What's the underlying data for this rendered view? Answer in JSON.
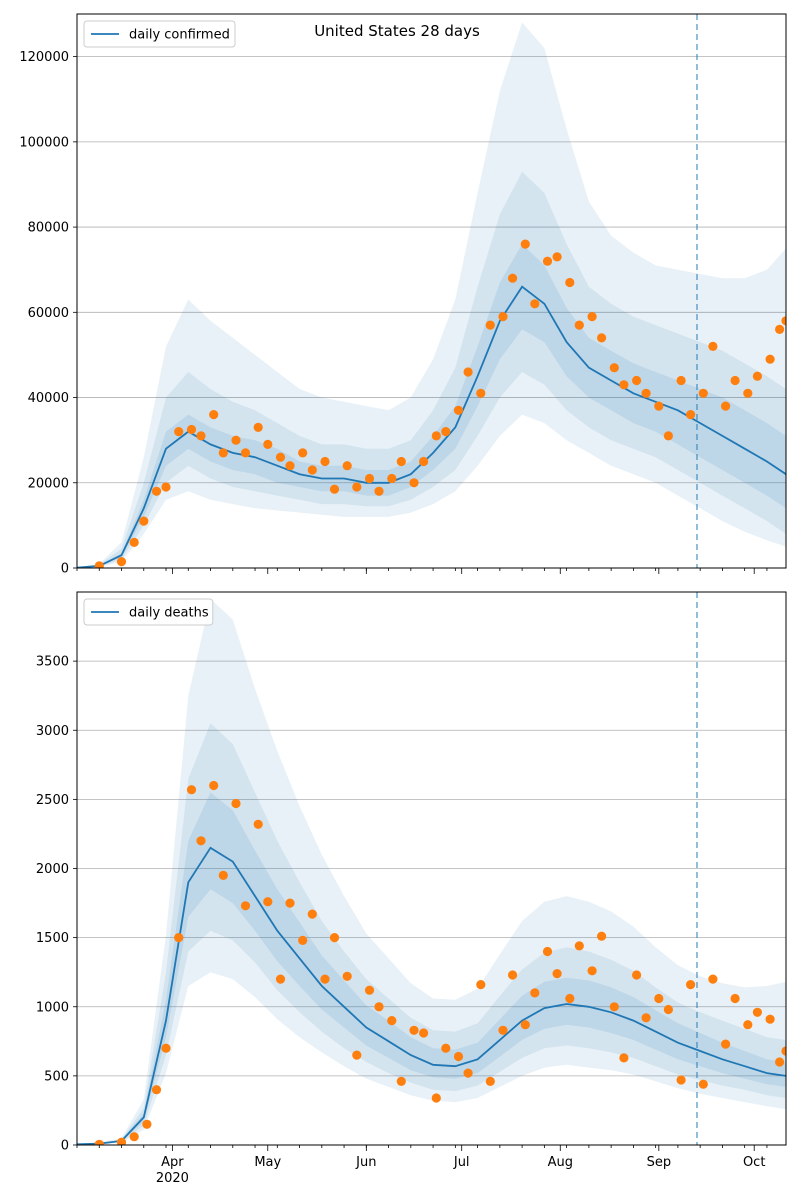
{
  "figure": {
    "title": "United States 28 days",
    "colors": {
      "line": "#1f77b4",
      "band": "#1f77b4",
      "points": "#ff7f0e",
      "forecast_marker": "#1f77b4",
      "grid": "#b0b0b0"
    }
  },
  "chart_data": [
    {
      "type": "line",
      "panel": "top",
      "title": "United States 28 days",
      "legend": [
        "daily confirmed"
      ],
      "legend_position": "top-left",
      "grid": "horizontal",
      "ylim": [
        0,
        130000
      ],
      "yticks": [
        0,
        20000,
        40000,
        60000,
        80000,
        100000,
        120000
      ],
      "x_start": "2020-03-02",
      "x_end": "2020-10-11",
      "forecast_start": "2020-09-13",
      "xtick_labels": [
        {
          "date": "2020-04-01",
          "label": "Apr",
          "sublabel": "2020"
        },
        {
          "date": "2020-05-01",
          "label": "May"
        },
        {
          "date": "2020-06-01",
          "label": "Jun"
        },
        {
          "date": "2020-07-01",
          "label": "Jul"
        },
        {
          "date": "2020-08-01",
          "label": "Aug"
        },
        {
          "date": "2020-09-01",
          "label": "Sep"
        },
        {
          "date": "2020-10-01",
          "label": "Oct"
        }
      ],
      "series": [
        {
          "name": "daily confirmed",
          "x": [
            "2020-03-02",
            "2020-03-09",
            "2020-03-16",
            "2020-03-23",
            "2020-03-30",
            "2020-04-06",
            "2020-04-13",
            "2020-04-20",
            "2020-04-27",
            "2020-05-04",
            "2020-05-11",
            "2020-05-18",
            "2020-05-25",
            "2020-06-01",
            "2020-06-08",
            "2020-06-15",
            "2020-06-22",
            "2020-06-29",
            "2020-07-06",
            "2020-07-13",
            "2020-07-20",
            "2020-07-27",
            "2020-08-03",
            "2020-08-10",
            "2020-08-17",
            "2020-08-24",
            "2020-08-31",
            "2020-09-07",
            "2020-09-14",
            "2020-09-21",
            "2020-09-28",
            "2020-10-05",
            "2020-10-11"
          ],
          "median": [
            100,
            500,
            3000,
            14000,
            28000,
            32000,
            29000,
            27000,
            26000,
            24000,
            22000,
            21000,
            21000,
            20000,
            20000,
            22000,
            27000,
            33000,
            45000,
            58000,
            66000,
            62000,
            53000,
            47000,
            44000,
            41000,
            39000,
            37000,
            34000,
            31000,
            28000,
            25000,
            22000
          ],
          "band_50": [
            [
              80,
              400,
              2500,
              12000,
              24000,
              28000,
              25000,
              23000,
              22000,
              20000,
              19000,
              18000,
              18000,
              17000,
              17000,
              19000,
              23000,
              28000,
              38000,
              49000,
              56000,
              53000,
              45000,
              40000,
              37000,
              34000,
              32000,
              29000,
              26000,
              23000,
              20000,
              17000,
              14000
            ],
            [
              120,
              600,
              3500,
              16000,
              32000,
              36000,
              33000,
              31000,
              30000,
              28000,
              25000,
              24000,
              24000,
              23000,
              23000,
              25000,
              31000,
              38000,
              52000,
              67000,
              76000,
              71000,
              61000,
              54000,
              51000,
              48000,
              46000,
              44000,
              42000,
              40000,
              37000,
              34000,
              31000
            ]
          ],
          "band_75": [
            [
              60,
              300,
              2000,
              10000,
              20000,
              24000,
              21000,
              19000,
              18000,
              17000,
              16000,
              15000,
              15000,
              14500,
              14500,
              16000,
              19000,
              23000,
              31000,
              40000,
              46000,
              43000,
              37000,
              33000,
              30000,
              28000,
              26000,
              23000,
              20000,
              17000,
              14000,
              11000,
              8000
            ],
            [
              140,
              800,
              4500,
              20000,
              40000,
              46000,
              42000,
              39000,
              37000,
              34000,
              31000,
              29000,
              29000,
              28000,
              28000,
              30000,
              37000,
              47000,
              66000,
              83000,
              93000,
              88000,
              76000,
              66000,
              62000,
              59000,
              57000,
              55000,
              53000,
              51000,
              48000,
              45000,
              42000
            ]
          ],
          "band_95": [
            [
              40,
              200,
              1500,
              8000,
              16000,
              18000,
              16000,
              15000,
              14000,
              13500,
              13000,
              12500,
              12000,
              12000,
              12000,
              13000,
              15000,
              18000,
              24000,
              31000,
              36000,
              34000,
              30000,
              27000,
              24000,
              22000,
              20000,
              17000,
              14000,
              11000,
              8500,
              6500,
              5000
            ],
            [
              160,
              1000,
              6000,
              26000,
              52000,
              63000,
              58000,
              54000,
              50000,
              46000,
              42000,
              40000,
              39000,
              38000,
              37000,
              40000,
              49000,
              63000,
              88000,
              112000,
              128000,
              122000,
              103000,
              86000,
              78000,
              74000,
              71000,
              70000,
              69000,
              68000,
              68000,
              70000,
              75000
            ]
          ],
          "observed_x": [
            "2020-03-09",
            "2020-03-16",
            "2020-03-20",
            "2020-03-23",
            "2020-03-27",
            "2020-03-30",
            "2020-04-03",
            "2020-04-07",
            "2020-04-10",
            "2020-04-14",
            "2020-04-17",
            "2020-04-21",
            "2020-04-24",
            "2020-04-28",
            "2020-05-01",
            "2020-05-05",
            "2020-05-08",
            "2020-05-12",
            "2020-05-15",
            "2020-05-19",
            "2020-05-22",
            "2020-05-26",
            "2020-05-29",
            "2020-06-02",
            "2020-06-05",
            "2020-06-09",
            "2020-06-12",
            "2020-06-16",
            "2020-06-19",
            "2020-06-23",
            "2020-06-26",
            "2020-06-30",
            "2020-07-03",
            "2020-07-07",
            "2020-07-10",
            "2020-07-14",
            "2020-07-17",
            "2020-07-21",
            "2020-07-24",
            "2020-07-28",
            "2020-07-31",
            "2020-08-04",
            "2020-08-07",
            "2020-08-11",
            "2020-08-14",
            "2020-08-18",
            "2020-08-21",
            "2020-08-25",
            "2020-08-28",
            "2020-09-01",
            "2020-09-04",
            "2020-09-08",
            "2020-09-11",
            "2020-09-15",
            "2020-09-18",
            "2020-09-22",
            "2020-09-25",
            "2020-09-29",
            "2020-10-02",
            "2020-10-06",
            "2020-10-09",
            "2020-10-11"
          ],
          "observed": [
            500,
            1500,
            6000,
            11000,
            18000,
            19000,
            32000,
            32500,
            31000,
            36000,
            27000,
            30000,
            27000,
            33000,
            29000,
            26000,
            24000,
            27000,
            23000,
            25000,
            18500,
            24000,
            19000,
            21000,
            18000,
            21000,
            25000,
            20000,
            25000,
            31000,
            32000,
            37000,
            46000,
            41000,
            57000,
            59000,
            68000,
            76000,
            62000,
            72000,
            73000,
            67000,
            57000,
            59000,
            54000,
            47000,
            43000,
            44000,
            41000,
            38000,
            31000,
            44000,
            36000,
            41000,
            52000,
            38000,
            44000,
            41000,
            45000,
            49000,
            56000,
            58000
          ]
        }
      ]
    },
    {
      "type": "line",
      "panel": "bottom",
      "title": "",
      "legend": [
        "daily deaths"
      ],
      "legend_position": "top-left",
      "grid": "horizontal",
      "ylim": [
        0,
        4000
      ],
      "yticks": [
        0,
        500,
        1000,
        1500,
        2000,
        2500,
        3000,
        3500
      ],
      "x_start": "2020-03-02",
      "x_end": "2020-10-11",
      "forecast_start": "2020-09-13",
      "xtick_labels": [
        {
          "date": "2020-04-01",
          "label": "Apr",
          "sublabel": "2020"
        },
        {
          "date": "2020-05-01",
          "label": "May"
        },
        {
          "date": "2020-06-01",
          "label": "Jun"
        },
        {
          "date": "2020-07-01",
          "label": "Jul"
        },
        {
          "date": "2020-08-01",
          "label": "Aug"
        },
        {
          "date": "2020-09-01",
          "label": "Sep"
        },
        {
          "date": "2020-10-01",
          "label": "Oct"
        }
      ],
      "series": [
        {
          "name": "daily deaths",
          "x": [
            "2020-03-02",
            "2020-03-09",
            "2020-03-16",
            "2020-03-23",
            "2020-03-30",
            "2020-04-06",
            "2020-04-13",
            "2020-04-20",
            "2020-04-27",
            "2020-05-04",
            "2020-05-11",
            "2020-05-18",
            "2020-05-25",
            "2020-06-01",
            "2020-06-08",
            "2020-06-15",
            "2020-06-22",
            "2020-06-29",
            "2020-07-06",
            "2020-07-13",
            "2020-07-20",
            "2020-07-27",
            "2020-08-03",
            "2020-08-10",
            "2020-08-17",
            "2020-08-24",
            "2020-08-31",
            "2020-09-07",
            "2020-09-14",
            "2020-09-21",
            "2020-09-28",
            "2020-10-05",
            "2020-10-11"
          ],
          "median": [
            5,
            10,
            30,
            200,
            900,
            1900,
            2150,
            2050,
            1800,
            1550,
            1350,
            1150,
            1000,
            850,
            750,
            650,
            580,
            570,
            620,
            760,
            900,
            990,
            1020,
            1000,
            960,
            900,
            820,
            740,
            680,
            620,
            570,
            520,
            500
          ],
          "band_50": [
            [
              4,
              8,
              25,
              170,
              780,
              1650,
              1850,
              1750,
              1550,
              1330,
              1150,
              980,
              850,
              720,
              630,
              540,
              490,
              480,
              520,
              640,
              760,
              840,
              870,
              850,
              810,
              760,
              690,
              620,
              570,
              520,
              480,
              440,
              420
            ],
            [
              6,
              12,
              35,
              230,
              1050,
              2200,
              2550,
              2420,
              2130,
              1850,
              1610,
              1370,
              1190,
              1010,
              900,
              780,
              700,
              690,
              740,
              910,
              1080,
              1180,
              1210,
              1190,
              1140,
              1070,
              975,
              880,
              810,
              740,
              680,
              620,
              600
            ]
          ],
          "band_75": [
            [
              3,
              6,
              20,
              140,
              650,
              1400,
              1550,
              1480,
              1320,
              1120,
              960,
              820,
              700,
              600,
              520,
              450,
              400,
              390,
              430,
              530,
              630,
              700,
              720,
              700,
              670,
              630,
              570,
              510,
              470,
              430,
              400,
              360,
              340
            ],
            [
              7,
              14,
              40,
              270,
              1250,
              2650,
              3050,
              2900,
              2550,
              2200,
              1900,
              1620,
              1400,
              1200,
              1060,
              920,
              830,
              820,
              880,
              1080,
              1270,
              1390,
              1430,
              1400,
              1340,
              1260,
              1140,
              1030,
              960,
              900,
              840,
              780,
              760
            ]
          ],
          "band_95": [
            [
              2,
              5,
              15,
              110,
              520,
              1150,
              1250,
              1200,
              1070,
              910,
              780,
              670,
              570,
              480,
              420,
              360,
              320,
              310,
              340,
              420,
              500,
              560,
              580,
              560,
              540,
              510,
              460,
              410,
              370,
              340,
              310,
              280,
              260
            ],
            [
              9,
              18,
              50,
              330,
              1520,
              3250,
              3950,
              3800,
              3300,
              2850,
              2450,
              2100,
              1800,
              1530,
              1350,
              1170,
              1060,
              1050,
              1130,
              1380,
              1620,
              1760,
              1800,
              1760,
              1690,
              1580,
              1430,
              1300,
              1220,
              1170,
              1140,
              1150,
              1180
            ]
          ],
          "observed_x": [
            "2020-03-09",
            "2020-03-16",
            "2020-03-20",
            "2020-03-24",
            "2020-03-27",
            "2020-03-30",
            "2020-04-03",
            "2020-04-07",
            "2020-04-10",
            "2020-04-14",
            "2020-04-17",
            "2020-04-21",
            "2020-04-24",
            "2020-04-28",
            "2020-05-01",
            "2020-05-05",
            "2020-05-08",
            "2020-05-12",
            "2020-05-15",
            "2020-05-19",
            "2020-05-22",
            "2020-05-26",
            "2020-05-29",
            "2020-06-02",
            "2020-06-05",
            "2020-06-09",
            "2020-06-12",
            "2020-06-16",
            "2020-06-19",
            "2020-06-23",
            "2020-06-26",
            "2020-06-30",
            "2020-07-03",
            "2020-07-07",
            "2020-07-10",
            "2020-07-14",
            "2020-07-17",
            "2020-07-21",
            "2020-07-24",
            "2020-07-28",
            "2020-07-31",
            "2020-08-04",
            "2020-08-07",
            "2020-08-11",
            "2020-08-14",
            "2020-08-18",
            "2020-08-21",
            "2020-08-25",
            "2020-08-28",
            "2020-09-01",
            "2020-09-04",
            "2020-09-08",
            "2020-09-11",
            "2020-09-15",
            "2020-09-18",
            "2020-09-22",
            "2020-09-25",
            "2020-09-29",
            "2020-10-02",
            "2020-10-06",
            "2020-10-09",
            "2020-10-11"
          ],
          "observed": [
            5,
            20,
            60,
            150,
            400,
            700,
            1500,
            2570,
            2200,
            2600,
            1950,
            2470,
            1730,
            2320,
            1760,
            1200,
            1750,
            1480,
            1670,
            1200,
            1500,
            1220,
            650,
            1120,
            1000,
            900,
            460,
            830,
            810,
            340,
            700,
            640,
            520,
            1160,
            460,
            830,
            1230,
            870,
            1100,
            1400,
            1240,
            1060,
            1440,
            1260,
            1510,
            1000,
            630,
            1230,
            920,
            1060,
            980,
            470,
            1160,
            440,
            1200,
            730,
            1060,
            870,
            960,
            910,
            600,
            680
          ]
        }
      ]
    }
  ]
}
